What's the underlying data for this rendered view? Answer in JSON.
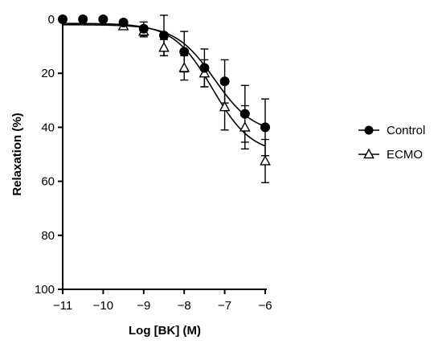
{
  "chart_data": {
    "type": "scatter",
    "xlabel": "Log [BK] (M)",
    "ylabel": "Relaxation (%)",
    "xlim": [
      -11,
      -6
    ],
    "ylim": [
      0,
      100
    ],
    "y_inverted": true,
    "x_ticks": [
      -11,
      -10,
      -9,
      -8,
      -7,
      -6
    ],
    "x_tick_labels": [
      "−11",
      "−10",
      "−9",
      "−8",
      "−7",
      "−6"
    ],
    "y_ticks": [
      0,
      20,
      40,
      60,
      80,
      100
    ],
    "y_tick_labels": [
      "0",
      "20",
      "40",
      "60",
      "80",
      "100"
    ],
    "grid": false,
    "legend_position": "right",
    "series": [
      {
        "name": "Control",
        "marker": "filled-circle",
        "color": "#000000",
        "x": [
          -11,
          -10.5,
          -10,
          -9.5,
          -9,
          -8.5,
          -8,
          -7.5,
          -7,
          -6.5,
          -6
        ],
        "y": [
          0,
          0,
          0,
          1.2,
          3.5,
          6,
          12,
          18,
          23,
          35,
          40
        ],
        "error": [
          0,
          0,
          0,
          0,
          2.5,
          7.5,
          7.5,
          7,
          8,
          10.5,
          10.5
        ],
        "fit": {
          "bottom": 2,
          "top": 42.5,
          "logEC50": -7.25,
          "hill": 0.9
        }
      },
      {
        "name": "ECMO",
        "marker": "open-triangle",
        "color": "#000000",
        "x": [
          -9.5,
          -9,
          -8.5,
          -8,
          -7.5,
          -7,
          -6.5,
          -6
        ],
        "y": [
          2.5,
          4.5,
          10.5,
          18,
          20,
          32.5,
          40,
          52.5
        ],
        "error": [
          0,
          2,
          3,
          4.5,
          5,
          8.5,
          8,
          8
        ],
        "fit": {
          "bottom": 1.5,
          "top": 50,
          "logEC50": -7.3,
          "hill": 0.9
        }
      }
    ]
  }
}
